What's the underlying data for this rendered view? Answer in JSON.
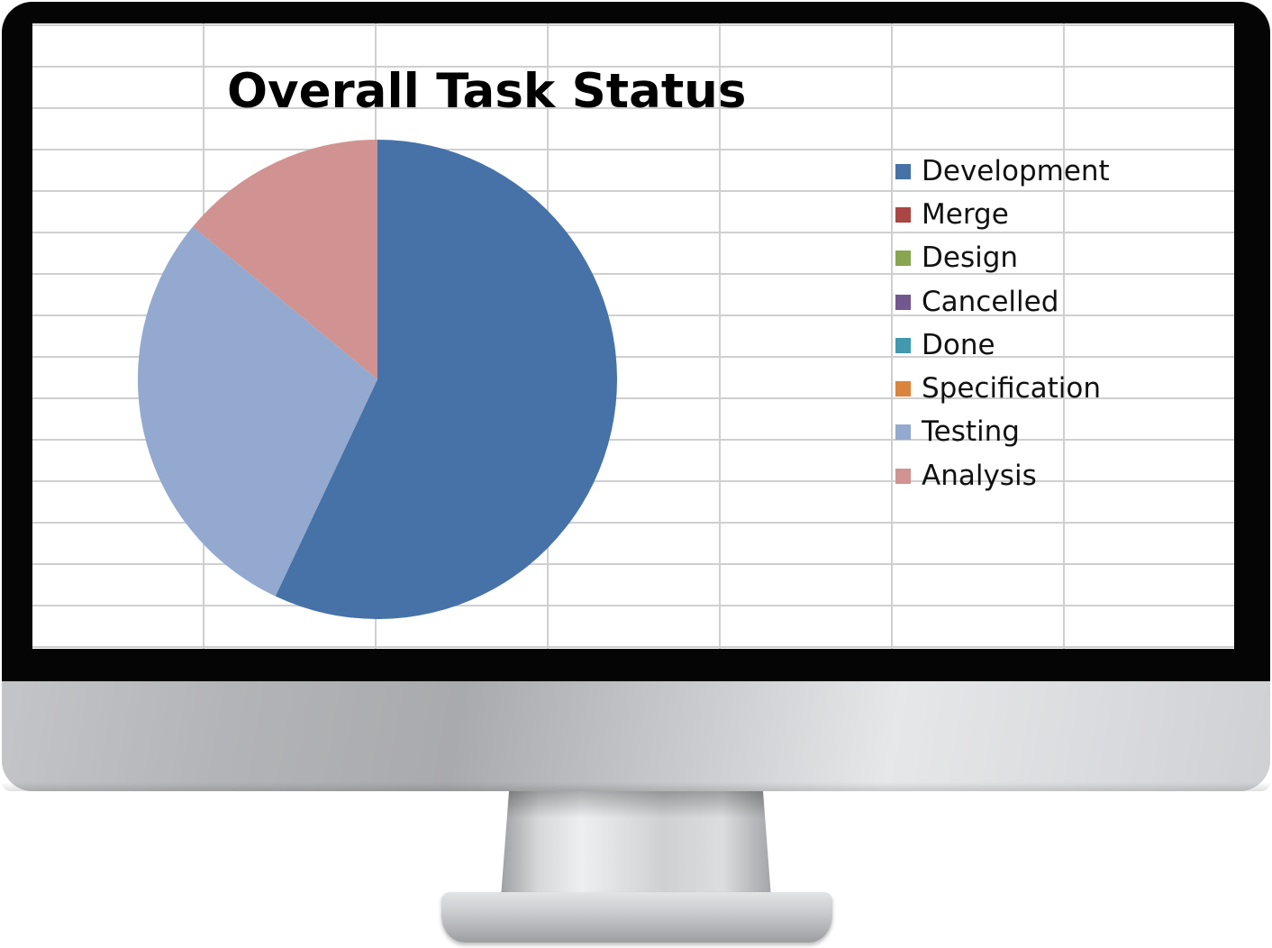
{
  "chart_data": {
    "type": "pie",
    "title": "Overall Task Status",
    "legend_position": "right",
    "grid": true,
    "categories": [
      "Development",
      "Merge",
      "Design",
      "Cancelled",
      "Done",
      "Specification",
      "Testing",
      "Analysis"
    ],
    "values": [
      57,
      0,
      0,
      0,
      0,
      0,
      29,
      14
    ],
    "colors": [
      "#4672A8",
      "#AA4643",
      "#89A54E",
      "#71588F",
      "#4198AF",
      "#DB843D",
      "#93A9CF",
      "#D09392"
    ]
  }
}
